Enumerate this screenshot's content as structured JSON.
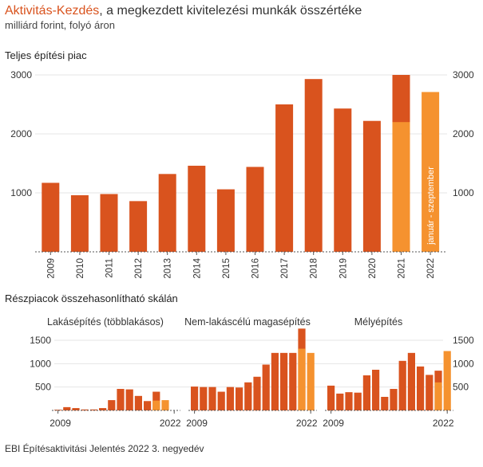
{
  "header": {
    "title_accent": "Aktivitás-Kezdés",
    "title_rest": ", a megkezdett kivitelezési munkák összértéke",
    "subtitle": "milliárd forint, folyó áron",
    "section_main": "Teljes építési piac",
    "section_sub": "Részpiacok összehasonlítható skálán",
    "source": "EBI Építésaktivitási Jelentés 2022 3. negyedév"
  },
  "colors": {
    "dark": "#d9531e",
    "light": "#f5922f",
    "grid": "#e6e6e6",
    "axis": "#555555"
  },
  "chart_data": [
    {
      "type": "bar",
      "title": "Teljes építési piac",
      "categories": [
        "2009",
        "2010",
        "2011",
        "2012",
        "2013",
        "2014",
        "2015",
        "2016",
        "2017",
        "2018",
        "2019",
        "2020",
        "2021",
        "2022"
      ],
      "series": [
        {
          "values": [
            1170,
            960,
            980,
            860,
            1320,
            1460,
            1060,
            1440,
            2500,
            2930,
            2430,
            2220,
            3000,
            null
          ]
        },
        {
          "values": [
            null,
            null,
            null,
            null,
            null,
            null,
            null,
            null,
            null,
            null,
            null,
            null,
            2200,
            2710
          ]
        }
      ],
      "ylim": [
        0,
        3000
      ],
      "yticks": [
        1000,
        2000,
        3000
      ],
      "annotation": "január - szeptember"
    },
    {
      "type": "bar",
      "title": "Lakásépítés (többlakásos)",
      "categories": [
        "2009",
        "2010",
        "2011",
        "2012",
        "2013",
        "2014",
        "2015",
        "2016",
        "2017",
        "2018",
        "2019",
        "2020",
        "2021",
        "2022"
      ],
      "x_tick_labels": [
        "2009",
        "2022"
      ],
      "series": [
        {
          "values": [
            15,
            70,
            50,
            20,
            20,
            50,
            220,
            460,
            450,
            310,
            200,
            400,
            null,
            null
          ]
        },
        {
          "values": [
            null,
            null,
            null,
            null,
            null,
            null,
            null,
            null,
            null,
            null,
            null,
            210,
            220,
            null
          ]
        }
      ],
      "ylim": [
        0,
        1750
      ],
      "yticks": [
        500,
        1000,
        1500
      ]
    },
    {
      "type": "bar",
      "title": "Nem-lakáscélú magasépítés",
      "categories": [
        "2009",
        "2010",
        "2011",
        "2012",
        "2013",
        "2014",
        "2015",
        "2016",
        "2017",
        "2018",
        "2019",
        "2020",
        "2021",
        "2022"
      ],
      "x_tick_labels": [
        "2009",
        "2022"
      ],
      "series": [
        {
          "values": [
            510,
            500,
            500,
            400,
            500,
            490,
            600,
            720,
            980,
            1230,
            1230,
            1230,
            1750,
            null
          ]
        },
        {
          "values": [
            null,
            null,
            null,
            null,
            null,
            null,
            null,
            null,
            null,
            null,
            null,
            null,
            1320,
            1230
          ]
        }
      ],
      "ylim": [
        0,
        1750
      ],
      "yticks": [
        500,
        1000,
        1500
      ]
    },
    {
      "type": "bar",
      "title": "Mélyépítés",
      "categories": [
        "2009",
        "2010",
        "2011",
        "2012",
        "2013",
        "2014",
        "2015",
        "2016",
        "2017",
        "2018",
        "2019",
        "2020",
        "2021",
        "2022"
      ],
      "x_tick_labels": [
        "2009",
        "2022"
      ],
      "series": [
        {
          "values": [
            530,
            360,
            390,
            380,
            750,
            870,
            290,
            460,
            1060,
            1230,
            940,
            760,
            850,
            null
          ]
        },
        {
          "values": [
            null,
            null,
            null,
            null,
            null,
            null,
            null,
            null,
            null,
            null,
            null,
            null,
            600,
            1270
          ]
        }
      ],
      "ylim": [
        0,
        1750
      ],
      "yticks": [
        500,
        1000,
        1500
      ]
    }
  ]
}
